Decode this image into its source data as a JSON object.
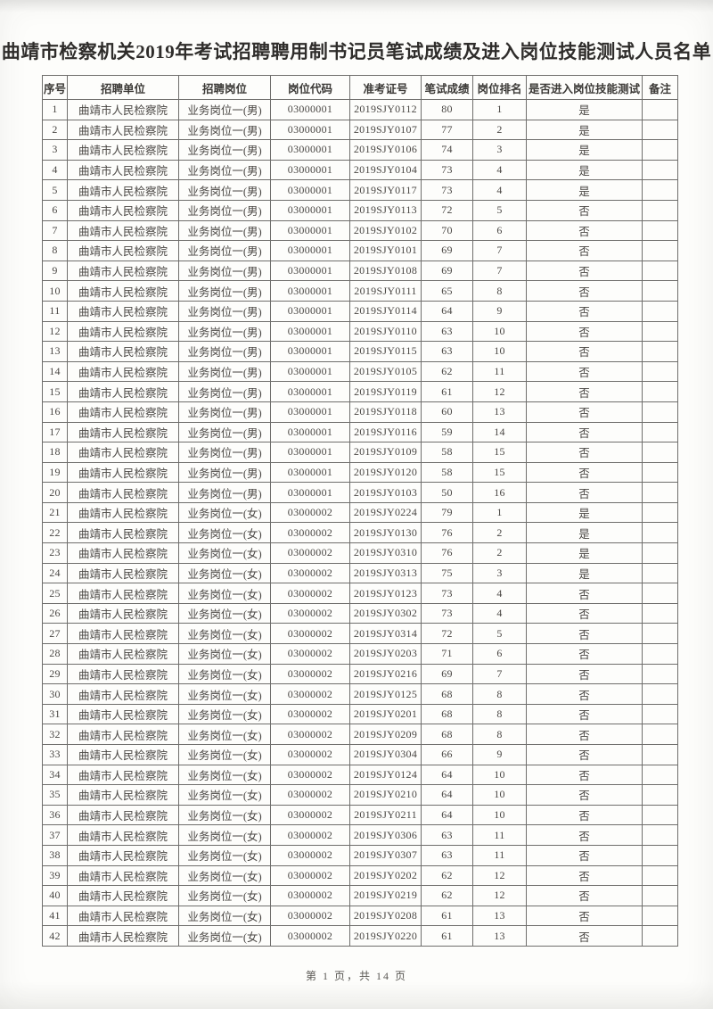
{
  "page": {
    "title": "曲靖市检察机关2019年考试招聘聘用制书记员笔试成绩及进入岗位技能测试人员名单",
    "footer": "第 1 页，共 14 页"
  },
  "table": {
    "headers": [
      "序号",
      "招聘单位",
      "招聘岗位",
      "岗位代码",
      "准考证号",
      "笔试成绩",
      "岗位排名",
      "是否进入岗位技能测试",
      "备注"
    ],
    "field_names": [
      "seq",
      "unit",
      "position",
      "code",
      "ticket",
      "score",
      "rank",
      "advance",
      "note"
    ],
    "numeric_fields": [
      0,
      3,
      4,
      5,
      6
    ],
    "rows": [
      [
        "1",
        "曲靖市人民检察院",
        "业务岗位一(男)",
        "03000001",
        "2019SJY0112",
        "80",
        "1",
        "是",
        ""
      ],
      [
        "2",
        "曲靖市人民检察院",
        "业务岗位一(男)",
        "03000001",
        "2019SJY0107",
        "77",
        "2",
        "是",
        ""
      ],
      [
        "3",
        "曲靖市人民检察院",
        "业务岗位一(男)",
        "03000001",
        "2019SJY0106",
        "74",
        "3",
        "是",
        ""
      ],
      [
        "4",
        "曲靖市人民检察院",
        "业务岗位一(男)",
        "03000001",
        "2019SJY0104",
        "73",
        "4",
        "是",
        ""
      ],
      [
        "5",
        "曲靖市人民检察院",
        "业务岗位一(男)",
        "03000001",
        "2019SJY0117",
        "73",
        "4",
        "是",
        ""
      ],
      [
        "6",
        "曲靖市人民检察院",
        "业务岗位一(男)",
        "03000001",
        "2019SJY0113",
        "72",
        "5",
        "否",
        ""
      ],
      [
        "7",
        "曲靖市人民检察院",
        "业务岗位一(男)",
        "03000001",
        "2019SJY0102",
        "70",
        "6",
        "否",
        ""
      ],
      [
        "8",
        "曲靖市人民检察院",
        "业务岗位一(男)",
        "03000001",
        "2019SJY0101",
        "69",
        "7",
        "否",
        ""
      ],
      [
        "9",
        "曲靖市人民检察院",
        "业务岗位一(男)",
        "03000001",
        "2019SJY0108",
        "69",
        "7",
        "否",
        ""
      ],
      [
        "10",
        "曲靖市人民检察院",
        "业务岗位一(男)",
        "03000001",
        "2019SJY0111",
        "65",
        "8",
        "否",
        ""
      ],
      [
        "11",
        "曲靖市人民检察院",
        "业务岗位一(男)",
        "03000001",
        "2019SJY0114",
        "64",
        "9",
        "否",
        ""
      ],
      [
        "12",
        "曲靖市人民检察院",
        "业务岗位一(男)",
        "03000001",
        "2019SJY0110",
        "63",
        "10",
        "否",
        ""
      ],
      [
        "13",
        "曲靖市人民检察院",
        "业务岗位一(男)",
        "03000001",
        "2019SJY0115",
        "63",
        "10",
        "否",
        ""
      ],
      [
        "14",
        "曲靖市人民检察院",
        "业务岗位一(男)",
        "03000001",
        "2019SJY0105",
        "62",
        "11",
        "否",
        ""
      ],
      [
        "15",
        "曲靖市人民检察院",
        "业务岗位一(男)",
        "03000001",
        "2019SJY0119",
        "61",
        "12",
        "否",
        ""
      ],
      [
        "16",
        "曲靖市人民检察院",
        "业务岗位一(男)",
        "03000001",
        "2019SJY0118",
        "60",
        "13",
        "否",
        ""
      ],
      [
        "17",
        "曲靖市人民检察院",
        "业务岗位一(男)",
        "03000001",
        "2019SJY0116",
        "59",
        "14",
        "否",
        ""
      ],
      [
        "18",
        "曲靖市人民检察院",
        "业务岗位一(男)",
        "03000001",
        "2019SJY0109",
        "58",
        "15",
        "否",
        ""
      ],
      [
        "19",
        "曲靖市人民检察院",
        "业务岗位一(男)",
        "03000001",
        "2019SJY0120",
        "58",
        "15",
        "否",
        ""
      ],
      [
        "20",
        "曲靖市人民检察院",
        "业务岗位一(男)",
        "03000001",
        "2019SJY0103",
        "50",
        "16",
        "否",
        ""
      ],
      [
        "21",
        "曲靖市人民检察院",
        "业务岗位一(女)",
        "03000002",
        "2019SJY0224",
        "79",
        "1",
        "是",
        ""
      ],
      [
        "22",
        "曲靖市人民检察院",
        "业务岗位一(女)",
        "03000002",
        "2019SJY0130",
        "76",
        "2",
        "是",
        ""
      ],
      [
        "23",
        "曲靖市人民检察院",
        "业务岗位一(女)",
        "03000002",
        "2019SJY0310",
        "76",
        "2",
        "是",
        ""
      ],
      [
        "24",
        "曲靖市人民检察院",
        "业务岗位一(女)",
        "03000002",
        "2019SJY0313",
        "75",
        "3",
        "是",
        ""
      ],
      [
        "25",
        "曲靖市人民检察院",
        "业务岗位一(女)",
        "03000002",
        "2019SJY0123",
        "73",
        "4",
        "否",
        ""
      ],
      [
        "26",
        "曲靖市人民检察院",
        "业务岗位一(女)",
        "03000002",
        "2019SJY0302",
        "73",
        "4",
        "否",
        ""
      ],
      [
        "27",
        "曲靖市人民检察院",
        "业务岗位一(女)",
        "03000002",
        "2019SJY0314",
        "72",
        "5",
        "否",
        ""
      ],
      [
        "28",
        "曲靖市人民检察院",
        "业务岗位一(女)",
        "03000002",
        "2019SJY0203",
        "71",
        "6",
        "否",
        ""
      ],
      [
        "29",
        "曲靖市人民检察院",
        "业务岗位一(女)",
        "03000002",
        "2019SJY0216",
        "69",
        "7",
        "否",
        ""
      ],
      [
        "30",
        "曲靖市人民检察院",
        "业务岗位一(女)",
        "03000002",
        "2019SJY0125",
        "68",
        "8",
        "否",
        ""
      ],
      [
        "31",
        "曲靖市人民检察院",
        "业务岗位一(女)",
        "03000002",
        "2019SJY0201",
        "68",
        "8",
        "否",
        ""
      ],
      [
        "32",
        "曲靖市人民检察院",
        "业务岗位一(女)",
        "03000002",
        "2019SJY0209",
        "68",
        "8",
        "否",
        ""
      ],
      [
        "33",
        "曲靖市人民检察院",
        "业务岗位一(女)",
        "03000002",
        "2019SJY0304",
        "66",
        "9",
        "否",
        ""
      ],
      [
        "34",
        "曲靖市人民检察院",
        "业务岗位一(女)",
        "03000002",
        "2019SJY0124",
        "64",
        "10",
        "否",
        ""
      ],
      [
        "35",
        "曲靖市人民检察院",
        "业务岗位一(女)",
        "03000002",
        "2019SJY0210",
        "64",
        "10",
        "否",
        ""
      ],
      [
        "36",
        "曲靖市人民检察院",
        "业务岗位一(女)",
        "03000002",
        "2019SJY0211",
        "64",
        "10",
        "否",
        ""
      ],
      [
        "37",
        "曲靖市人民检察院",
        "业务岗位一(女)",
        "03000002",
        "2019SJY0306",
        "63",
        "11",
        "否",
        ""
      ],
      [
        "38",
        "曲靖市人民检察院",
        "业务岗位一(女)",
        "03000002",
        "2019SJY0307",
        "63",
        "11",
        "否",
        ""
      ],
      [
        "39",
        "曲靖市人民检察院",
        "业务岗位一(女)",
        "03000002",
        "2019SJY0202",
        "62",
        "12",
        "否",
        ""
      ],
      [
        "40",
        "曲靖市人民检察院",
        "业务岗位一(女)",
        "03000002",
        "2019SJY0219",
        "62",
        "12",
        "否",
        ""
      ],
      [
        "41",
        "曲靖市人民检察院",
        "业务岗位一(女)",
        "03000002",
        "2019SJY0208",
        "61",
        "13",
        "否",
        ""
      ],
      [
        "42",
        "曲靖市人民检察院",
        "业务岗位一(女)",
        "03000002",
        "2019SJY0220",
        "61",
        "13",
        "否",
        ""
      ]
    ]
  }
}
